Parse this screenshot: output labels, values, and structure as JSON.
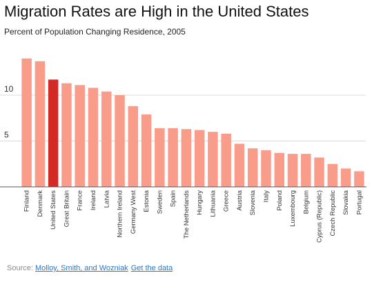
{
  "title": "Migration Rates are High in the United States",
  "subtitle": "Percent of Population Changing Residence, 2005",
  "source": {
    "label": "Source:",
    "authors_link": "Molloy, Smith, and Wozniak",
    "data_link": "Get the data"
  },
  "colors": {
    "bar": "#f99d8a",
    "highlight": "#d32a26",
    "grid": "#d8d8d8",
    "axis": "#555555",
    "link": "#2a78c6"
  },
  "chart_data": {
    "type": "bar",
    "title": "Migration Rates are High in the United States",
    "subtitle": "Percent of Population Changing Residence, 2005",
    "xlabel": "",
    "ylabel": "",
    "ylim": [
      0,
      15
    ],
    "yticks": [
      5,
      10
    ],
    "grid": true,
    "highlight": "United States",
    "categories": [
      "Finland",
      "Denmark",
      "United States",
      "Great Britain",
      "France",
      "Ireland",
      "Latvia",
      "Northern Ireland",
      "Germany West",
      "Estonia",
      "Sweden",
      "Spain",
      "The Netherlands",
      "Hungary",
      "Lithuania",
      "Greece",
      "Austria",
      "Slovenia",
      "Italy",
      "Poland",
      "Luxembourg",
      "Belgium",
      "Cyprus (Republic)",
      "Czech Republic",
      "Slovakia",
      "Portugal"
    ],
    "values": [
      14.0,
      13.7,
      11.7,
      11.3,
      11.1,
      10.8,
      10.4,
      10.0,
      8.8,
      7.9,
      6.4,
      6.4,
      6.3,
      6.2,
      6.0,
      5.8,
      4.7,
      4.2,
      4.0,
      3.7,
      3.6,
      3.6,
      3.2,
      2.5,
      2.0,
      1.7
    ]
  }
}
